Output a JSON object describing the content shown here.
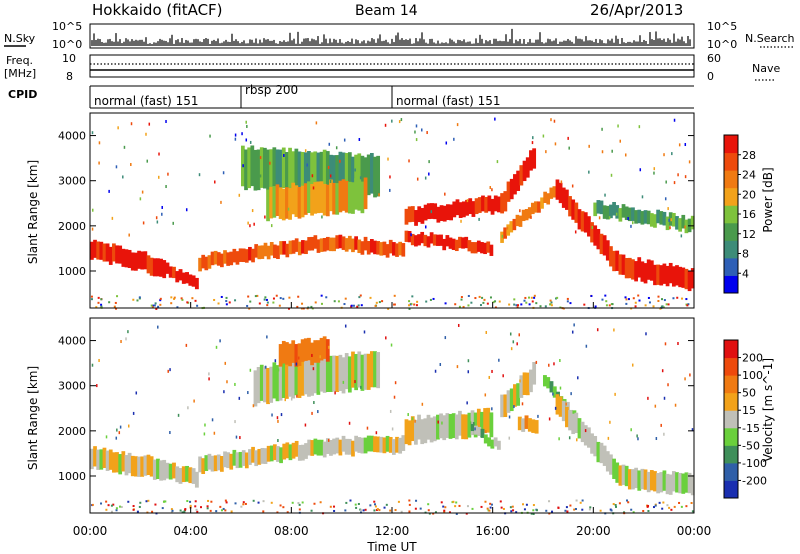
{
  "header": {
    "title": "Hokkaido (fitACF)",
    "beam": "Beam 14",
    "date": "26/Apr/2013"
  },
  "top_panel": {
    "left_label": "N.Sky",
    "right_label": "N.Search",
    "ticks_left": [
      "10^5",
      "10^0"
    ],
    "ticks_right": [
      "10^5",
      "10^0"
    ]
  },
  "freq_panel": {
    "left_label_1": "Freq.",
    "left_label_2": "[MHz]",
    "right_label": "Nave",
    "ticks_left": [
      "10",
      "8"
    ],
    "ticks_right": [
      "60",
      "0"
    ]
  },
  "cpid": {
    "label": "CPID",
    "segments": [
      {
        "name": "normal (fast) 151",
        "start": 0,
        "end": 6
      },
      {
        "name": "rbsp 200",
        "start": 6,
        "end": 12
      },
      {
        "name": "normal (fast) 151",
        "start": 12,
        "end": 24
      }
    ]
  },
  "colors": {
    "power": [
      "#0000ee",
      "#2e5fb6",
      "#3d8c78",
      "#4a9a4c",
      "#7ec23c",
      "#f2a21a",
      "#f07a12",
      "#ee4a0c",
      "#e8140a"
    ],
    "velocity": [
      "#1a2fb0",
      "#2f5fa8",
      "#3f8f5a",
      "#6ad03c",
      "#c0c0b8",
      "#f2a21a",
      "#f07a12",
      "#ee4a0c",
      "#e01010"
    ],
    "ground": "#c0c0b8"
  },
  "chart_data": [
    {
      "type": "heatmap",
      "name": "power",
      "ylabel": "Slant Range [km]",
      "colorbar_label": "Power [dB]",
      "colorbar_ticks": [
        "28",
        "24",
        "20",
        "16",
        "12",
        "8",
        "4"
      ],
      "xlim": [
        0,
        24
      ],
      "ylim": [
        180,
        4500
      ],
      "yticks": [
        "1000",
        "2000",
        "3000",
        "4000"
      ],
      "bands": [
        {
          "start": 0,
          "end": 3,
          "r_start": 1500,
          "r_end": 1050,
          "width": 400,
          "level": 8
        },
        {
          "start": 3,
          "end": 4.3,
          "r_start": 1050,
          "r_end": 650,
          "width": 250,
          "level": 8
        },
        {
          "start": 4.3,
          "end": 9.5,
          "r_start": 1200,
          "r_end": 1650,
          "width": 300,
          "level": 7
        },
        {
          "start": 9.5,
          "end": 12.5,
          "r_start": 1650,
          "r_end": 1450,
          "width": 300,
          "level": 7
        },
        {
          "start": 12.5,
          "end": 16.0,
          "r_start": 1750,
          "r_end": 1500,
          "width": 250,
          "level": 8
        },
        {
          "start": 12.5,
          "end": 16.3,
          "r_start": 2200,
          "r_end": 2500,
          "width": 350,
          "level": 8
        },
        {
          "start": 16.3,
          "end": 17.7,
          "r_start": 2500,
          "r_end": 3600,
          "width": 450,
          "level": 8
        },
        {
          "start": 16.3,
          "end": 18.5,
          "r_start": 1800,
          "r_end": 2800,
          "width": 250,
          "level": 6
        },
        {
          "start": 18.5,
          "end": 21.0,
          "r_start": 2800,
          "r_end": 1100,
          "width": 450,
          "level": 8
        },
        {
          "start": 21.0,
          "end": 24.0,
          "r_start": 1100,
          "r_end": 800,
          "width": 450,
          "level": 8
        },
        {
          "start": 6.0,
          "end": 11.5,
          "r_start": 3300,
          "r_end": 3100,
          "width": 900,
          "level": 3
        },
        {
          "start": 7.0,
          "end": 11.0,
          "r_start": 2500,
          "r_end": 2700,
          "width": 700,
          "level": 5
        },
        {
          "start": 20.0,
          "end": 24.0,
          "r_start": 2400,
          "r_end": 2000,
          "width": 300,
          "level": 3
        }
      ]
    },
    {
      "type": "heatmap",
      "name": "velocity",
      "ylabel": "Slant Range [km]",
      "xlabel": "Time UT",
      "colorbar_label": "Velocity [m s^-1]",
      "colorbar_ticks": [
        "200",
        "100",
        "50",
        "15",
        "-15",
        "-50",
        "-100",
        "-200"
      ],
      "xlim": [
        0,
        24
      ],
      "ylim": [
        180,
        4500
      ],
      "yticks": [
        "1000",
        "2000",
        "3000",
        "4000"
      ],
      "xticks": [
        "00:00",
        "04:00",
        "08:00",
        "12:00",
        "16:00",
        "20:00",
        "00:00"
      ],
      "bands": [
        {
          "start": 0,
          "end": 3,
          "r_start": 1400,
          "r_end": 1150,
          "width": 450,
          "level": 4
        },
        {
          "start": 3,
          "end": 4.3,
          "r_start": 1150,
          "r_end": 900,
          "width": 350,
          "level": 4
        },
        {
          "start": 4.3,
          "end": 9.5,
          "r_start": 1250,
          "r_end": 1650,
          "width": 350,
          "level": 4
        },
        {
          "start": 9.5,
          "end": 12.5,
          "r_start": 1650,
          "r_end": 1700,
          "width": 350,
          "level": 4
        },
        {
          "start": 12.5,
          "end": 16.0,
          "r_start": 2000,
          "r_end": 2200,
          "width": 550,
          "level": 4
        },
        {
          "start": 15.0,
          "end": 16.3,
          "r_start": 2100,
          "r_end": 1600,
          "width": 200,
          "level": 3
        },
        {
          "start": 16.3,
          "end": 17.7,
          "r_start": 2500,
          "r_end": 3300,
          "width": 500,
          "level": 4
        },
        {
          "start": 17.0,
          "end": 17.8,
          "r_start": 2200,
          "r_end": 2000,
          "width": 300,
          "level": 5
        },
        {
          "start": 18.0,
          "end": 19.3,
          "r_start": 3100,
          "r_end": 2200,
          "width": 250,
          "level": 3
        },
        {
          "start": 18.5,
          "end": 21.0,
          "r_start": 2600,
          "r_end": 1000,
          "width": 450,
          "level": 4
        },
        {
          "start": 21.0,
          "end": 24.0,
          "r_start": 1000,
          "r_end": 800,
          "width": 450,
          "level": 4
        },
        {
          "start": 6.5,
          "end": 11.5,
          "r_start": 3000,
          "r_end": 3400,
          "width": 800,
          "level": 4
        },
        {
          "start": 7.5,
          "end": 9.5,
          "r_start": 3700,
          "r_end": 3800,
          "width": 500,
          "level": 6
        }
      ]
    }
  ]
}
